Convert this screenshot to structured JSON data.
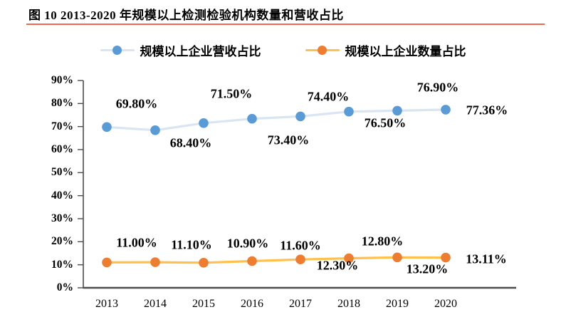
{
  "figure": {
    "title": "图 10 2013-2020 年规模以上检测检验机构数量和营收占比",
    "underline_color": "#EC6652"
  },
  "legend": {
    "items": [
      {
        "label": "规模以上企业营收占比",
        "marker_color": "#5B9BD5",
        "line_color": "#D9E5F3"
      },
      {
        "label": "规模以上企业数量占比",
        "marker_color": "#ED7D31",
        "line_color": "#FFC04D"
      }
    ]
  },
  "chart_data": {
    "type": "line",
    "categories": [
      "2013",
      "2014",
      "2015",
      "2016",
      "2017",
      "2018",
      "2019",
      "2020"
    ],
    "series": [
      {
        "name": "规模以上企业营收占比",
        "values": [
          69.8,
          68.4,
          71.5,
          73.4,
          74.4,
          76.5,
          76.9,
          77.36
        ],
        "labels": [
          "69.80%",
          "68.40%",
          "71.50%",
          "73.40%",
          "74.40%",
          "76.50%",
          "76.90%",
          "77.36%"
        ],
        "marker_color": "#5B9BD5",
        "line_color": "#D9E5F3",
        "label_offsets": [
          [
            42,
            -32
          ],
          [
            50,
            18
          ],
          [
            39,
            -41
          ],
          [
            51,
            30
          ],
          [
            39,
            -27
          ],
          [
            51,
            16
          ],
          [
            57,
            -32
          ],
          [
            58,
            1
          ]
        ]
      },
      {
        "name": "规模以上企业数量占比",
        "values": [
          11.0,
          11.1,
          10.9,
          11.6,
          12.3,
          12.8,
          13.2,
          13.11
        ],
        "labels": [
          "11.00%",
          "11.10%",
          "10.90%",
          "11.60%",
          "12.30%",
          "12.80%",
          "13.20%",
          "13.11%"
        ],
        "marker_color": "#ED7D31",
        "line_color": "#FFC04D",
        "label_offsets": [
          [
            42,
            -27
          ],
          [
            51,
            -24
          ],
          [
            62,
            -27
          ],
          [
            68,
            -21
          ],
          [
            52,
            9
          ],
          [
            47,
            -24
          ],
          [
            42,
            17
          ],
          [
            57,
            2
          ]
        ]
      }
    ],
    "y_tick_labels": [
      "90%",
      "80%",
      "70%",
      "60%",
      "50%",
      "40%",
      "30%",
      "20%",
      "10%",
      "0%"
    ],
    "ylim": [
      0,
      90
    ],
    "y_step": 10,
    "grid": false,
    "legend_position": "top",
    "axis_color": "#4D4D4D",
    "title": "图 10 2013-2020 年规模以上检测检验机构数量和营收占比"
  }
}
